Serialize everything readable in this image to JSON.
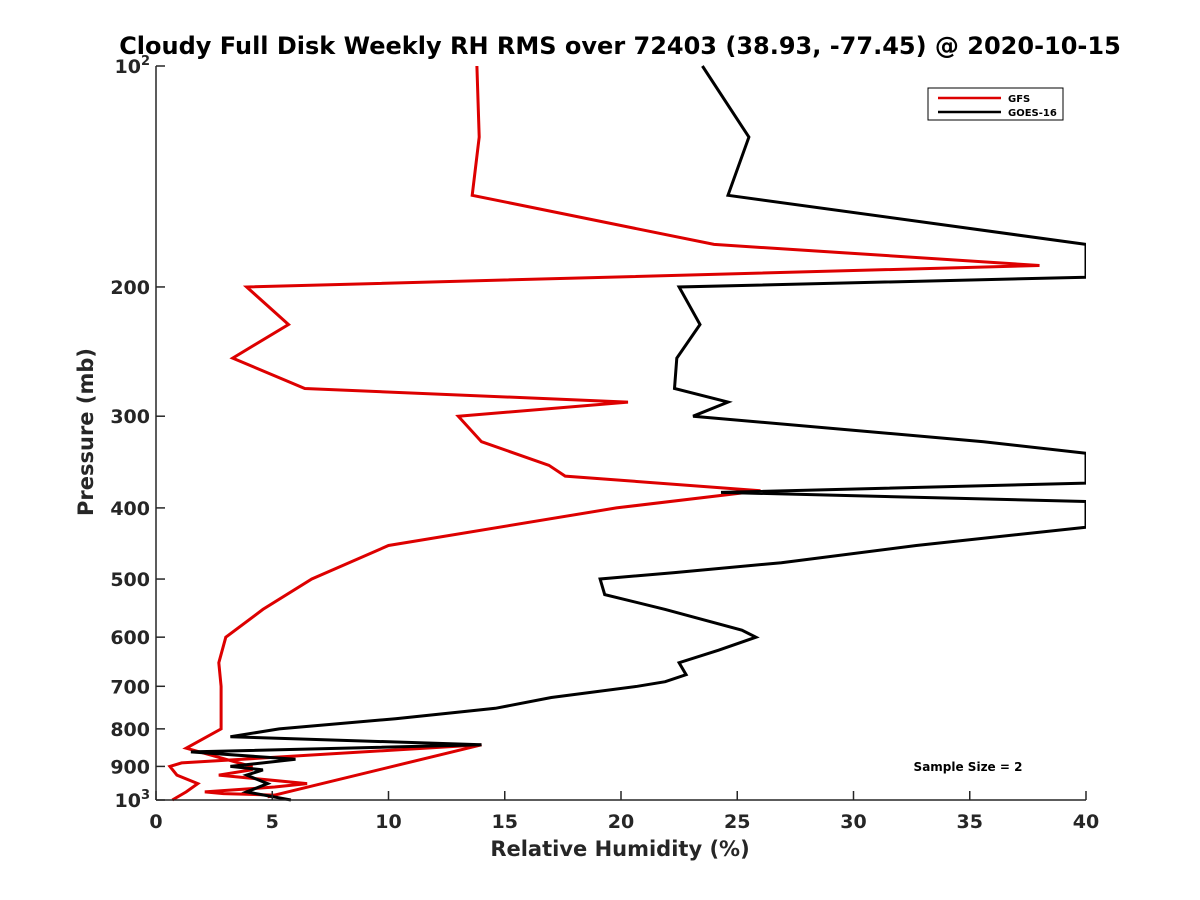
{
  "chart_data": {
    "type": "line",
    "title": "Cloudy Full Disk Weekly RH RMS over 72403 (38.93, -77.45) @ 2020-10-15",
    "xlabel": "Relative Humidity (%)",
    "ylabel": "Pressure (mb)",
    "xlim": [
      0,
      40
    ],
    "ylim": [
      100,
      1000
    ],
    "y_scale": "log",
    "y_reversed": true,
    "x_ticks": [
      0,
      5,
      10,
      15,
      20,
      25,
      30,
      35,
      40
    ],
    "y_ticks": [
      {
        "value": 100,
        "label": "10",
        "sup": "2"
      },
      {
        "value": 200,
        "label": "200"
      },
      {
        "value": 300,
        "label": "300"
      },
      {
        "value": 400,
        "label": "400"
      },
      {
        "value": 500,
        "label": "500"
      },
      {
        "value": 600,
        "label": "600"
      },
      {
        "value": 700,
        "label": "700"
      },
      {
        "value": 800,
        "label": "800"
      },
      {
        "value": 900,
        "label": "900"
      },
      {
        "value": 1000,
        "label": "10",
        "sup": "3"
      }
    ],
    "grid": false,
    "legend_position": "top-right",
    "annotation": "Sample Size = 2",
    "series": [
      {
        "name": "GFS",
        "color": "#dd0000",
        "points": [
          [
            13.8,
            100
          ],
          [
            13.9,
            125
          ],
          [
            13.6,
            150
          ],
          [
            24.0,
            175
          ],
          [
            38.0,
            187
          ],
          [
            3.9,
            200
          ],
          [
            5.7,
            225
          ],
          [
            3.3,
            250
          ],
          [
            6.4,
            275
          ],
          [
            20.3,
            287
          ],
          [
            13.0,
            300
          ],
          [
            14.0,
            325
          ],
          [
            16.9,
            350
          ],
          [
            17.6,
            362
          ],
          [
            26.0,
            379
          ],
          [
            19.8,
            400
          ],
          [
            10.0,
            450
          ],
          [
            6.7,
            500
          ],
          [
            4.6,
            550
          ],
          [
            3.0,
            600
          ],
          [
            2.7,
            650
          ],
          [
            2.8,
            700
          ],
          [
            2.8,
            750
          ],
          [
            2.8,
            800
          ],
          [
            1.3,
            850
          ],
          [
            4.1,
            900
          ],
          [
            4.1,
            910
          ],
          [
            2.7,
            925
          ],
          [
            5.0,
            940
          ],
          [
            6.5,
            950
          ],
          [
            5.1,
            960
          ],
          [
            2.1,
            975
          ],
          [
            2.9,
            980
          ],
          [
            5.2,
            985
          ],
          [
            4.8,
            990
          ],
          [
            14.0,
            841
          ],
          [
            1.1,
            890
          ],
          [
            0.6,
            900
          ],
          [
            0.9,
            925
          ],
          [
            1.8,
            950
          ],
          [
            1.3,
            975
          ],
          [
            0.7,
            1000
          ]
        ]
      },
      {
        "name": "GOES-16",
        "color": "#000000",
        "points": [
          [
            23.5,
            100
          ],
          [
            25.5,
            125
          ],
          [
            24.6,
            150
          ],
          [
            40,
            175
          ],
          [
            40,
            194
          ],
          [
            22.5,
            200
          ],
          [
            23.4,
            225
          ],
          [
            22.4,
            250
          ],
          [
            22.3,
            275
          ],
          [
            24.6,
            287
          ],
          [
            23.1,
            300
          ],
          [
            35.6,
            325
          ],
          [
            40,
            337
          ],
          [
            40,
            370
          ],
          [
            24.3,
            381
          ],
          [
            40,
            392
          ],
          [
            40,
            425
          ],
          [
            32.7,
            450
          ],
          [
            26.9,
            475
          ],
          [
            22.3,
            490
          ],
          [
            19.1,
            500
          ],
          [
            19.3,
            525
          ],
          [
            21.9,
            550
          ],
          [
            25.2,
            587
          ],
          [
            25.8,
            600
          ],
          [
            24.2,
            625
          ],
          [
            22.5,
            650
          ],
          [
            22.8,
            675
          ],
          [
            21.9,
            690
          ],
          [
            20.7,
            700
          ],
          [
            17.0,
            725
          ],
          [
            14.6,
            750
          ],
          [
            10.3,
            775
          ],
          [
            5.3,
            800
          ],
          [
            3.2,
            820
          ],
          [
            14.0,
            841
          ],
          [
            1.5,
            860
          ],
          [
            6.0,
            880
          ],
          [
            3.2,
            900
          ],
          [
            4.6,
            910
          ],
          [
            3.9,
            925
          ],
          [
            4.8,
            950
          ],
          [
            3.9,
            975
          ],
          [
            5.8,
            1000
          ]
        ]
      }
    ]
  }
}
